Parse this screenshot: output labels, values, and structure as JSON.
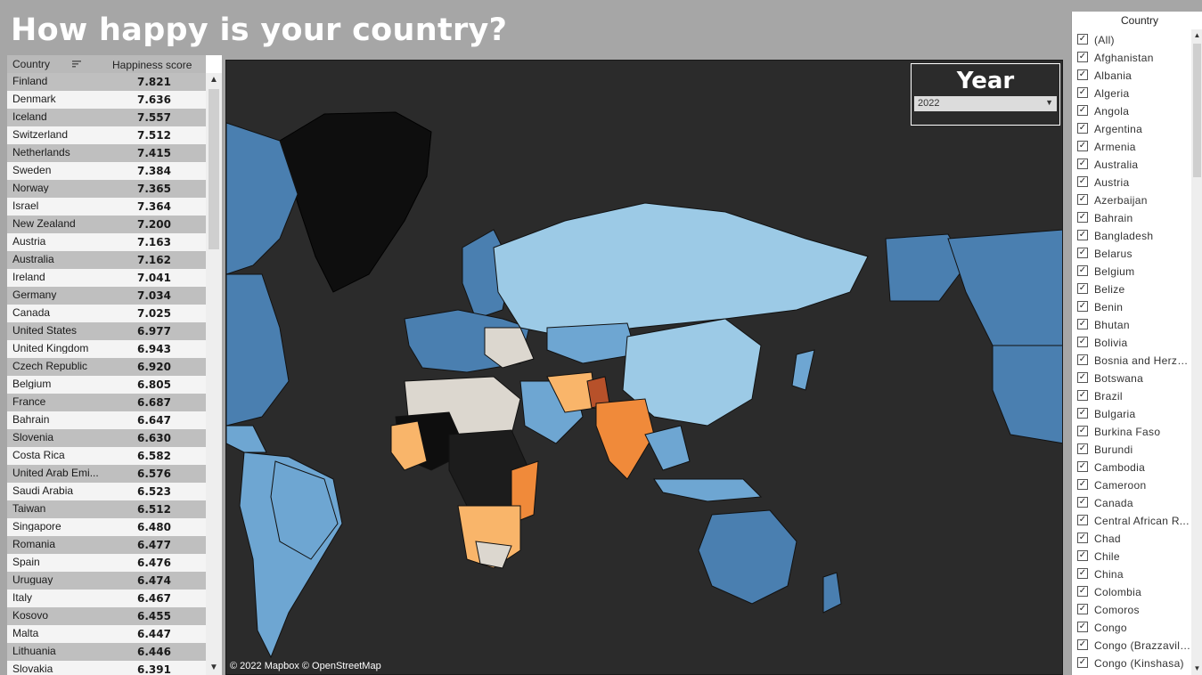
{
  "page": {
    "title": "How happy is your country?"
  },
  "table": {
    "headers": {
      "country": "Country",
      "score": "Happiness score"
    },
    "rows": [
      {
        "country": "Finland",
        "score": "7.821"
      },
      {
        "country": "Denmark",
        "score": "7.636"
      },
      {
        "country": "Iceland",
        "score": "7.557"
      },
      {
        "country": "Switzerland",
        "score": "7.512"
      },
      {
        "country": "Netherlands",
        "score": "7.415"
      },
      {
        "country": "Sweden",
        "score": "7.384"
      },
      {
        "country": "Norway",
        "score": "7.365"
      },
      {
        "country": "Israel",
        "score": "7.364"
      },
      {
        "country": "New Zealand",
        "score": "7.200"
      },
      {
        "country": "Austria",
        "score": "7.163"
      },
      {
        "country": "Australia",
        "score": "7.162"
      },
      {
        "country": "Ireland",
        "score": "7.041"
      },
      {
        "country": "Germany",
        "score": "7.034"
      },
      {
        "country": "Canada",
        "score": "7.025"
      },
      {
        "country": "United States",
        "score": "6.977"
      },
      {
        "country": "United Kingdom",
        "score": "6.943"
      },
      {
        "country": "Czech Republic",
        "score": "6.920"
      },
      {
        "country": "Belgium",
        "score": "6.805"
      },
      {
        "country": "France",
        "score": "6.687"
      },
      {
        "country": "Bahrain",
        "score": "6.647"
      },
      {
        "country": "Slovenia",
        "score": "6.630"
      },
      {
        "country": "Costa Rica",
        "score": "6.582"
      },
      {
        "country": "United Arab Emi...",
        "score": "6.576"
      },
      {
        "country": "Saudi Arabia",
        "score": "6.523"
      },
      {
        "country": "Taiwan",
        "score": "6.512"
      },
      {
        "country": "Singapore",
        "score": "6.480"
      },
      {
        "country": "Romania",
        "score": "6.477"
      },
      {
        "country": "Spain",
        "score": "6.476"
      },
      {
        "country": "Uruguay",
        "score": "6.474"
      },
      {
        "country": "Italy",
        "score": "6.467"
      },
      {
        "country": "Kosovo",
        "score": "6.455"
      },
      {
        "country": "Malta",
        "score": "6.447"
      },
      {
        "country": "Lithuania",
        "score": "6.446"
      },
      {
        "country": "Slovakia",
        "score": "6.391"
      }
    ]
  },
  "map": {
    "attribution": "© 2022 Mapbox  © OpenStreetMap",
    "colors": {
      "background": "#2b2b2b",
      "very_high": "#4a7fb0",
      "high": "#6ea6d2",
      "medium_high": "#9ccae6",
      "mid": "#dcd7cf",
      "low": "#f9b56a",
      "lower": "#f08a3a",
      "lowest": "#b7512a",
      "no_data": "#0e0e0e"
    }
  },
  "year_filter": {
    "title": "Year",
    "selected": "2022"
  },
  "country_filter": {
    "title": "Country",
    "items": [
      "(All)",
      "Afghanistan",
      "Albania",
      "Algeria",
      "Angola",
      "Argentina",
      "Armenia",
      "Australia",
      "Austria",
      "Azerbaijan",
      "Bahrain",
      "Bangladesh",
      "Belarus",
      "Belgium",
      "Belize",
      "Benin",
      "Bhutan",
      "Bolivia",
      "Bosnia and Herze...",
      "Botswana",
      "Brazil",
      "Bulgaria",
      "Burkina Faso",
      "Burundi",
      "Cambodia",
      "Cameroon",
      "Canada",
      "Central African R...",
      "Chad",
      "Chile",
      "China",
      "Colombia",
      "Comoros",
      "Congo",
      "Congo (Brazzavill...",
      "Congo (Kinshasa)"
    ]
  }
}
